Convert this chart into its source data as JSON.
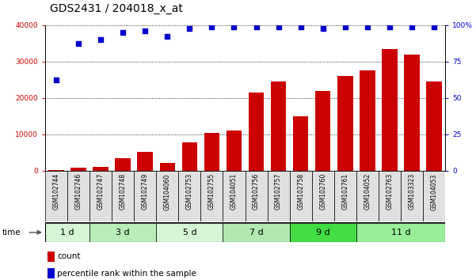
{
  "title": "GDS2431 / 204018_x_at",
  "samples": [
    "GSM102744",
    "GSM102746",
    "GSM102747",
    "GSM102748",
    "GSM102749",
    "GSM104060",
    "GSM102753",
    "GSM102755",
    "GSM104051",
    "GSM102756",
    "GSM102757",
    "GSM102758",
    "GSM102760",
    "GSM102761",
    "GSM104052",
    "GSM102763",
    "GSM103323",
    "GSM104053"
  ],
  "counts": [
    300,
    900,
    1000,
    3500,
    5200,
    2200,
    7800,
    10500,
    11000,
    21500,
    24500,
    15000,
    22000,
    26000,
    27500,
    33500,
    32000,
    24500
  ],
  "percentile_values": [
    25000,
    35000,
    36000,
    38000,
    38500,
    37000,
    39000,
    39500,
    39500,
    39500,
    39500,
    39500,
    39200,
    39500,
    39500,
    39500,
    39500,
    39500
  ],
  "groups": [
    {
      "label": "1 d",
      "start": 0,
      "end": 2,
      "color": "#d0f5d0"
    },
    {
      "label": "3 d",
      "start": 2,
      "end": 5,
      "color": "#c0f0c0"
    },
    {
      "label": "5 d",
      "start": 5,
      "end": 8,
      "color": "#d0f5d0"
    },
    {
      "label": "7 d",
      "start": 8,
      "end": 11,
      "color": "#b0eeb0"
    },
    {
      "label": "9 d",
      "start": 11,
      "end": 14,
      "color": "#55dd55"
    },
    {
      "label": "11 d",
      "start": 14,
      "end": 18,
      "color": "#99ee99"
    }
  ],
  "ylim_left": [
    0,
    40000
  ],
  "ylim_right": [
    0,
    100
  ],
  "yticks_left": [
    0,
    10000,
    20000,
    30000,
    40000
  ],
  "yticks_right": [
    0,
    25,
    50,
    75,
    100
  ],
  "bar_color": "#cc0000",
  "dot_color": "#0000cc",
  "bg_color": "#ffffff",
  "title_fontsize": 10,
  "tick_fontsize": 6.5,
  "group_fontsize": 8
}
